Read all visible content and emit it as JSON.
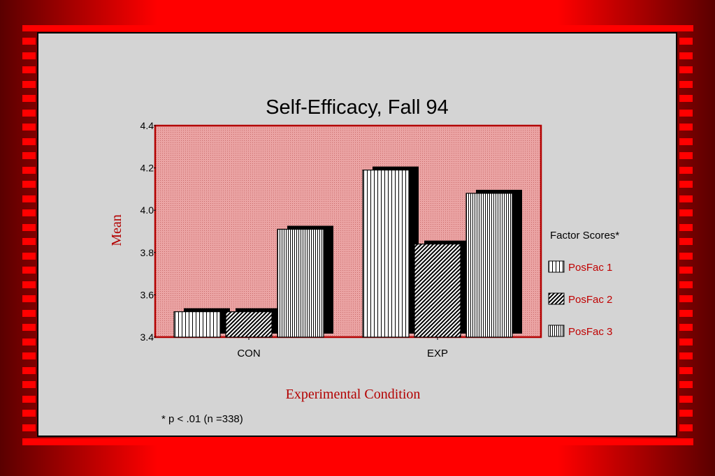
{
  "chart_data": {
    "type": "bar",
    "title": "Self-Efficacy, Fall 94",
    "xlabel": "Experimental Condition",
    "ylabel": "Mean",
    "categories": [
      "CON",
      "EXP"
    ],
    "series": [
      {
        "name": "PosFac 1",
        "values": [
          3.52,
          4.19
        ]
      },
      {
        "name": "PosFac 2",
        "values": [
          3.52,
          3.84
        ]
      },
      {
        "name": "PosFac 3",
        "values": [
          3.91,
          4.08
        ]
      }
    ],
    "ylim": [
      3.4,
      4.4
    ],
    "yticks": [
      "4.4",
      "4.2",
      "4.0",
      "3.8",
      "3.6",
      "3.4"
    ],
    "legend": {
      "title": "Factor Scores*",
      "position": "right"
    },
    "grid": false,
    "footnote": "* p < .01 (n =338)",
    "colors": {
      "plot_bg": "#e79a9a",
      "plot_border": "#b30000",
      "bar_fill": "#ffffff",
      "bar_pattern": "#000000",
      "label_red": "#b30000"
    }
  }
}
